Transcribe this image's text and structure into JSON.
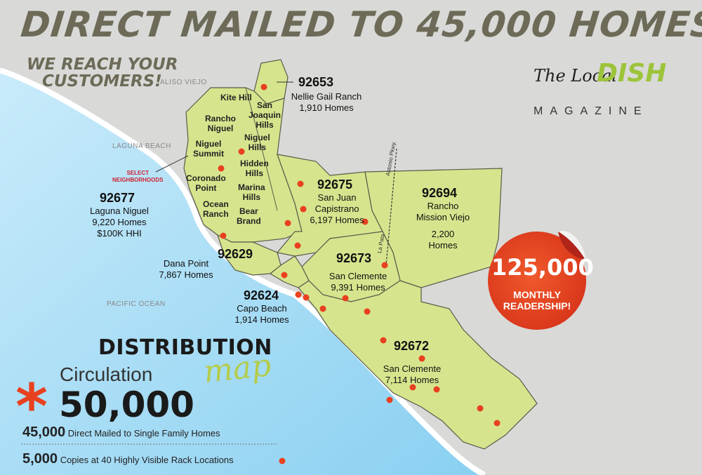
{
  "headline": "DIRECT MAILED TO 45,000 HOMES",
  "subheadline": [
    "WE REACH YOUR",
    "CUSTOMERS!"
  ],
  "logo": {
    "script": "The Local",
    "brand": "DISH",
    "tag": "MAGAZINE"
  },
  "cities": {
    "aliso_viejo": "ALISO VIEJO",
    "laguna_beach": "LAGUNA BEACH",
    "pacific_ocean": "PACIFIC OCEAN"
  },
  "select_neighborhoods": [
    "SELECT",
    "NEIGHBORHOODS"
  ],
  "zones": [
    {
      "id": "92653",
      "lines": [
        "Nellie Gail Ranch",
        "1,910 Homes"
      ]
    },
    {
      "id": "92677",
      "lines": [
        "Laguna Niguel",
        "9,220 Homes",
        "$100K HHI"
      ]
    },
    {
      "id": "92675",
      "lines": [
        "San Juan",
        "Capistrano",
        "6,197 Homes"
      ]
    },
    {
      "id": "92694",
      "lines": [
        "Rancho",
        "Mission Viejo",
        "",
        "2,200",
        "Homes"
      ]
    },
    {
      "id": "92629",
      "lines": [
        "Dana Point",
        "7,867 Homes"
      ]
    },
    {
      "id": "92673",
      "lines": [
        "San Clemente",
        "9,391 Homes"
      ]
    },
    {
      "id": "92624",
      "lines": [
        "Capo Beach",
        "1,914 Homes"
      ]
    },
    {
      "id": "92672",
      "lines": [
        "San Clemente",
        "7,114 Homes"
      ]
    }
  ],
  "neighborhoods": {
    "kite_hill": "Kite Hill",
    "san_joaquin_hills": [
      "San",
      "Joaquin",
      "Hills"
    ],
    "rancho_niguel": [
      "Rancho",
      "Niguel"
    ],
    "niguel_hills": [
      "Niguel",
      "Hills"
    ],
    "niguel_summit": [
      "Niguel",
      "Summit"
    ],
    "hidden_hills": [
      "Hidden",
      "Hills"
    ],
    "coronado_point": [
      "Coronado",
      "Point"
    ],
    "marina_hills": [
      "Marina",
      "Hills"
    ],
    "ocean_ranch": [
      "Ocean",
      "Ranch"
    ],
    "bear_brand": [
      "Bear",
      "Brand"
    ]
  },
  "streets": {
    "antonio": "Antonio Pkwy.",
    "la_pata": "La Pata"
  },
  "sticker": {
    "number": "125,000",
    "lines": [
      "MONTHLY",
      "READERSHIP!"
    ]
  },
  "distribution": {
    "title": "DISTRIBUTION",
    "script": "map"
  },
  "circulation": {
    "label": "Circulation",
    "number": "50,000",
    "mark": "*"
  },
  "lines": [
    {
      "count": "45,000",
      "text": "Direct Mailed to Single Family Homes"
    },
    {
      "count": "5,000",
      "text": "Copies at 40 Highly Visible Rack Locations"
    }
  ],
  "colors": {
    "land": "#d6e58d",
    "ocean": "#9fd8f4",
    "dot": "#e8411f",
    "background": "#d9d9d7",
    "accent": "#9cc43a"
  },
  "rack_location_count_shown": 40
}
